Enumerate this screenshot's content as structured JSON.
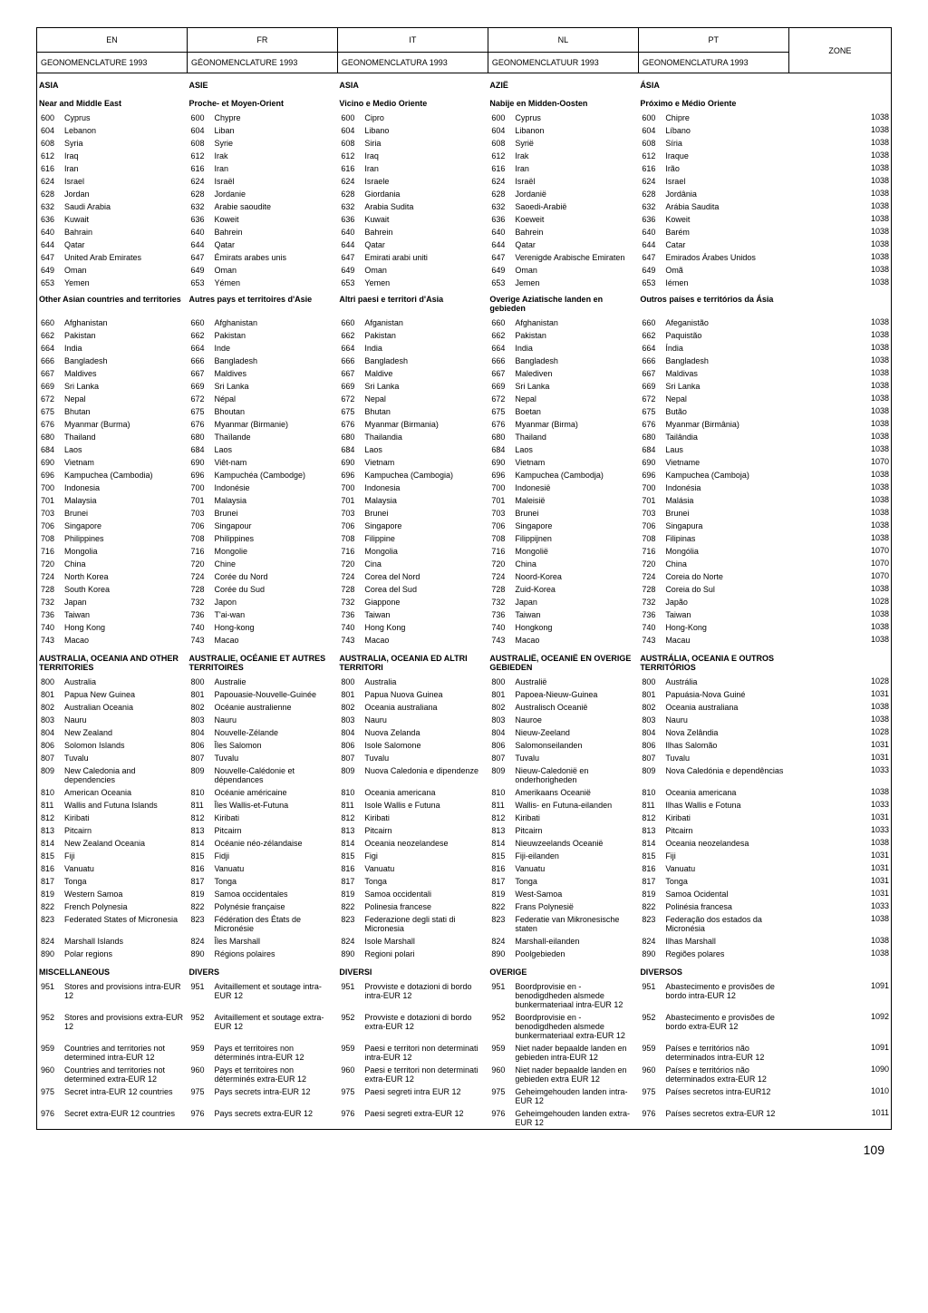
{
  "pageNumber": "109",
  "headers": {
    "en": "EN",
    "fr": "FR",
    "it": "IT",
    "nl": "NL",
    "pt": "PT",
    "zone": "ZONE"
  },
  "subheaders": {
    "en": "GEONOMENCLATURE 1993",
    "fr": "GÉONOMENCLATURE 1993",
    "it": "GEONOMENCLATURA 1993",
    "nl": "GEONOMENCLATUUR 1993",
    "pt": "GEONOMENCLATURA 1993"
  },
  "sections": [
    {
      "titles": {
        "en": "ASIA",
        "fr": "ASIE",
        "it": "ASIA",
        "nl": "AZIË",
        "pt": "ÁSIA"
      },
      "sub": {
        "en": "Near and Middle East",
        "fr": "Proche- et Moyen-Orient",
        "it": "Vicino e Medio Oriente",
        "nl": "Nabije en Midden-Oosten",
        "pt": "Próximo e Médio Oriente"
      },
      "rows": [
        {
          "c": "600",
          "en": "Cyprus",
          "fr": "Chypre",
          "it": "Cipro",
          "nl": "Cyprus",
          "pt": "Chipre",
          "z": "1038"
        },
        {
          "c": "604",
          "en": "Lebanon",
          "fr": "Liban",
          "it": "Libano",
          "nl": "Libanon",
          "pt": "Líbano",
          "z": "1038"
        },
        {
          "c": "608",
          "en": "Syria",
          "fr": "Syrie",
          "it": "Siria",
          "nl": "Syrië",
          "pt": "Síria",
          "z": "1038"
        },
        {
          "c": "612",
          "en": "Iraq",
          "fr": "Irak",
          "it": "Iraq",
          "nl": "Irak",
          "pt": "Iraque",
          "z": "1038"
        },
        {
          "c": "616",
          "en": "Iran",
          "fr": "Iran",
          "it": "Iran",
          "nl": "Iran",
          "pt": "Irão",
          "z": "1038"
        },
        {
          "c": "624",
          "en": "Israel",
          "fr": "Israël",
          "it": "Israele",
          "nl": "Israël",
          "pt": "Israel",
          "z": "1038"
        },
        {
          "c": "628",
          "en": "Jordan",
          "fr": "Jordanie",
          "it": "Giordania",
          "nl": "Jordanië",
          "pt": "Jordânia",
          "z": "1038"
        },
        {
          "c": "632",
          "en": "Saudi Arabia",
          "fr": "Arabie saoudite",
          "it": "Arabia Sudita",
          "nl": "Saoedi-Arabië",
          "pt": "Arábia Saudita",
          "z": "1038"
        },
        {
          "c": "636",
          "en": "Kuwait",
          "fr": "Koweit",
          "it": "Kuwait",
          "nl": "Koeweit",
          "pt": "Koweit",
          "z": "1038"
        },
        {
          "c": "640",
          "en": "Bahrain",
          "fr": "Bahrein",
          "it": "Bahrein",
          "nl": "Bahrein",
          "pt": "Barém",
          "z": "1038"
        },
        {
          "c": "644",
          "en": "Qatar",
          "fr": "Qatar",
          "it": "Qatar",
          "nl": "Qatar",
          "pt": "Catar",
          "z": "1038"
        },
        {
          "c": "647",
          "en": "United Arab Emirates",
          "fr": "Émirats arabes unis",
          "it": "Emirati arabi uniti",
          "nl": "Verenigde Arabische Emiraten",
          "pt": "Emirados Árabes Unidos",
          "z": "1038"
        },
        {
          "c": "649",
          "en": "Oman",
          "fr": "Oman",
          "it": "Oman",
          "nl": "Oman",
          "pt": "Omã",
          "z": "1038"
        },
        {
          "c": "653",
          "en": "Yemen",
          "fr": "Yémen",
          "it": "Yemen",
          "nl": "Jemen",
          "pt": "Iémen",
          "z": "1038"
        }
      ]
    },
    {
      "sub": {
        "en": "Other Asian countries and territories",
        "fr": "Autres pays et territoires d'Asie",
        "it": "Altri paesi e territori d'Asia",
        "nl": "Overige Aziatische landen en gebieden",
        "pt": "Outros países e territórios da Ásia"
      },
      "rows": [
        {
          "c": "660",
          "en": "Afghanistan",
          "fr": "Afghanistan",
          "it": "Afganistan",
          "nl": "Afghanistan",
          "pt": "Afeganistão",
          "z": "1038"
        },
        {
          "c": "662",
          "en": "Pakistan",
          "fr": "Pakistan",
          "it": "Pakistan",
          "nl": "Pakistan",
          "pt": "Paquistão",
          "z": "1038"
        },
        {
          "c": "664",
          "en": "India",
          "fr": "Inde",
          "it": "India",
          "nl": "India",
          "pt": "Índia",
          "z": "1038"
        },
        {
          "c": "666",
          "en": "Bangladesh",
          "fr": "Bangladesh",
          "it": "Bangladesh",
          "nl": "Bangladesh",
          "pt": "Bangladesh",
          "z": "1038"
        },
        {
          "c": "667",
          "en": "Maldives",
          "fr": "Maldives",
          "it": "Maldive",
          "nl": "Malediven",
          "pt": "Maldivas",
          "z": "1038"
        },
        {
          "c": "669",
          "en": "Sri Lanka",
          "fr": "Sri Lanka",
          "it": "Sri Lanka",
          "nl": "Sri Lanka",
          "pt": "Sri Lanka",
          "z": "1038"
        },
        {
          "c": "672",
          "en": "Nepal",
          "fr": "Népal",
          "it": "Nepal",
          "nl": "Nepal",
          "pt": "Nepal",
          "z": "1038"
        },
        {
          "c": "675",
          "en": "Bhutan",
          "fr": "Bhoutan",
          "it": "Bhutan",
          "nl": "Boetan",
          "pt": "Butão",
          "z": "1038"
        },
        {
          "c": "676",
          "en": "Myanmar (Burma)",
          "fr": "Myanmar (Birmanie)",
          "it": "Myanmar (Birmania)",
          "nl": "Myanmar (Birma)",
          "pt": "Myanmar (Birmânia)",
          "z": "1038"
        },
        {
          "c": "680",
          "en": "Thailand",
          "fr": "Thaïlande",
          "it": "Thailandia",
          "nl": "Thailand",
          "pt": "Tailândia",
          "z": "1038"
        },
        {
          "c": "684",
          "en": "Laos",
          "fr": "Laos",
          "it": "Laos",
          "nl": "Laos",
          "pt": "Laus",
          "z": "1038"
        },
        {
          "c": "690",
          "en": "Vietnam",
          "fr": "Viêt-nam",
          "it": "Vietnam",
          "nl": "Vietnam",
          "pt": "Vietname",
          "z": "1070"
        },
        {
          "c": "696",
          "en": "Kampuchea (Cambodia)",
          "fr": "Kampuchéa (Cambodge)",
          "it": "Kampuchea (Cambogia)",
          "nl": "Kampuchea (Cambodja)",
          "pt": "Kampuchea (Camboja)",
          "z": "1038"
        },
        {
          "c": "700",
          "en": "Indonesia",
          "fr": "Indonésie",
          "it": "Indonesia",
          "nl": "Indonesië",
          "pt": "Indonésia",
          "z": "1038"
        },
        {
          "c": "701",
          "en": "Malaysia",
          "fr": "Malaysia",
          "it": "Malaysia",
          "nl": "Maleisië",
          "pt": "Malásia",
          "z": "1038"
        },
        {
          "c": "703",
          "en": "Brunei",
          "fr": "Brunei",
          "it": "Brunei",
          "nl": "Brunei",
          "pt": "Brunei",
          "z": "1038"
        },
        {
          "c": "706",
          "en": "Singapore",
          "fr": "Singapour",
          "it": "Singapore",
          "nl": "Singapore",
          "pt": "Singapura",
          "z": "1038"
        },
        {
          "c": "708",
          "en": "Philippines",
          "fr": "Philippines",
          "it": "Filippine",
          "nl": "Filippijnen",
          "pt": "Filipinas",
          "z": "1038"
        },
        {
          "c": "716",
          "en": "Mongolia",
          "fr": "Mongolie",
          "it": "Mongolia",
          "nl": "Mongolië",
          "pt": "Mongólia",
          "z": "1070"
        },
        {
          "c": "720",
          "en": "China",
          "fr": "Chine",
          "it": "Cina",
          "nl": "China",
          "pt": "China",
          "z": "1070"
        },
        {
          "c": "724",
          "en": "North Korea",
          "fr": "Corée du Nord",
          "it": "Corea del Nord",
          "nl": "Noord-Korea",
          "pt": "Coreia do Norte",
          "z": "1070"
        },
        {
          "c": "728",
          "en": "South Korea",
          "fr": "Corée du Sud",
          "it": "Corea del Sud",
          "nl": "Zuid-Korea",
          "pt": "Coreia do Sul",
          "z": "1038"
        },
        {
          "c": "732",
          "en": "Japan",
          "fr": "Japon",
          "it": "Giappone",
          "nl": "Japan",
          "pt": "Japão",
          "z": "1028"
        },
        {
          "c": "736",
          "en": "Taiwan",
          "fr": "T'ai-wan",
          "it": "Taiwan",
          "nl": "Taiwan",
          "pt": "Taiwan",
          "z": "1038"
        },
        {
          "c": "740",
          "en": "Hong Kong",
          "fr": "Hong-kong",
          "it": "Hong Kong",
          "nl": "Hongkong",
          "pt": "Hong-Kong",
          "z": "1038"
        },
        {
          "c": "743",
          "en": "Macao",
          "fr": "Macao",
          "it": "Macao",
          "nl": "Macao",
          "pt": "Macau",
          "z": "1038"
        }
      ]
    },
    {
      "titles": {
        "en": "AUSTRALIA, OCEANIA AND OTHER TERRITORIES",
        "fr": "AUSTRALIE, OCÉANIE ET AUTRES TERRITOIRES",
        "it": "AUSTRALIA, OCEANIA ED ALTRI TERRITORI",
        "nl": "AUSTRALIË, OCEANIË EN OVERIGE GEBIEDEN",
        "pt": "AUSTRÁLIA, OCEANIA E OUTROS TERRITÓRIOS"
      },
      "rows": [
        {
          "c": "800",
          "en": "Australia",
          "fr": "Australie",
          "it": "Australia",
          "nl": "Australië",
          "pt": "Austrália",
          "z": "1028"
        },
        {
          "c": "801",
          "en": "Papua New Guinea",
          "fr": "Papouasie-Nouvelle-Guinée",
          "it": "Papua Nuova Guinea",
          "nl": "Papoea-Nieuw-Guinea",
          "pt": "Papuásia-Nova Guiné",
          "z": "1031"
        },
        {
          "c": "802",
          "en": "Australian Oceania",
          "fr": "Océanie australienne",
          "it": "Oceania australiana",
          "nl": "Australisch Oceanië",
          "pt": "Oceania australiana",
          "z": "1038"
        },
        {
          "c": "803",
          "en": "Nauru",
          "fr": "Nauru",
          "it": "Nauru",
          "nl": "Nauroe",
          "pt": "Nauru",
          "z": "1038"
        },
        {
          "c": "804",
          "en": "New Zealand",
          "fr": "Nouvelle-Zélande",
          "it": "Nuova Zelanda",
          "nl": "Nieuw-Zeeland",
          "pt": "Nova Zelândia",
          "z": "1028"
        },
        {
          "c": "806",
          "en": "Solomon Islands",
          "fr": "Îles Salomon",
          "it": "Isole Salomone",
          "nl": "Salomonseilanden",
          "pt": "Ilhas Salomão",
          "z": "1031"
        },
        {
          "c": "807",
          "en": "Tuvalu",
          "fr": "Tuvalu",
          "it": "Tuvalu",
          "nl": "Tuvalu",
          "pt": "Tuvalu",
          "z": "1031"
        },
        {
          "c": "809",
          "en": "New Caledonia and dependencies",
          "fr": "Nouvelle-Calédonie et dépendances",
          "it": "Nuova Caledonia e dipendenze",
          "nl": "Nieuw-Caledonië en onderhorigheden",
          "pt": "Nova Caledónia e dependências",
          "z": "1033"
        },
        {
          "c": "810",
          "en": "American Oceania",
          "fr": "Océanie américaine",
          "it": "Oceania americana",
          "nl": "Amerikaans Oceanië",
          "pt": "Oceania americana",
          "z": "1038"
        },
        {
          "c": "811",
          "en": "Wallis and Futuna Islands",
          "fr": "Îles Wallis-et-Futuna",
          "it": "Isole Wallis e Futuna",
          "nl": "Wallis- en Futuna-eilanden",
          "pt": "Ilhas Wallis e Fotuna",
          "z": "1033"
        },
        {
          "c": "812",
          "en": "Kiribati",
          "fr": "Kiribati",
          "it": "Kiribati",
          "nl": "Kiribati",
          "pt": "Kiribati",
          "z": "1031"
        },
        {
          "c": "813",
          "en": "Pitcairn",
          "fr": "Pitcairn",
          "it": "Pitcairn",
          "nl": "Pitcairn",
          "pt": "Pitcairn",
          "z": "1033"
        },
        {
          "c": "814",
          "en": "New Zealand Oceania",
          "fr": "Océanie néo-zélandaise",
          "it": "Oceania neozelandese",
          "nl": "Nieuwzeelands Oceanië",
          "pt": "Oceania neozelandesa",
          "z": "1038"
        },
        {
          "c": "815",
          "en": "Fiji",
          "fr": "Fidji",
          "it": "Figi",
          "nl": "Fiji-eilanden",
          "pt": "Fiji",
          "z": "1031"
        },
        {
          "c": "816",
          "en": "Vanuatu",
          "fr": "Vanuatu",
          "it": "Vanuatu",
          "nl": "Vanuatu",
          "pt": "Vanuatu",
          "z": "1031"
        },
        {
          "c": "817",
          "en": "Tonga",
          "fr": "Tonga",
          "it": "Tonga",
          "nl": "Tonga",
          "pt": "Tonga",
          "z": "1031"
        },
        {
          "c": "819",
          "en": "Western Samoa",
          "fr": "Samoa occidentales",
          "it": "Samoa occidentali",
          "nl": "West-Samoa",
          "pt": "Samoa Ocidental",
          "z": "1031"
        },
        {
          "c": "822",
          "en": "French Polynesia",
          "fr": "Polynésie française",
          "it": "Polinesia francese",
          "nl": "Frans Polynesië",
          "pt": "Polinésia francesa",
          "z": "1033"
        },
        {
          "c": "823",
          "en": "Federated States of Micronesia",
          "fr": "Fédération des États de Micronésie",
          "it": "Federazione degli stati di Micronesia",
          "nl": "Federatie van Mikronesische staten",
          "pt": "Federação dos estados da Micronésia",
          "z": "1038"
        },
        {
          "c": "824",
          "en": "Marshall Islands",
          "fr": "Îles Marshall",
          "it": "Isole Marshall",
          "nl": "Marshall-eilanden",
          "pt": "Ilhas Marshall",
          "z": "1038"
        },
        {
          "c": "890",
          "en": "Polar regions",
          "fr": "Régions polaires",
          "it": "Regioni polari",
          "nl": "Poolgebieden",
          "pt": "Regiões polares",
          "z": "1038"
        }
      ]
    },
    {
      "titles": {
        "en": "MISCELLANEOUS",
        "fr": "DIVERS",
        "it": "DIVERSI",
        "nl": "OVERIGE",
        "pt": "DIVERSOS"
      },
      "rows": [
        {
          "c": "951",
          "en": "Stores and provisions intra-EUR 12",
          "fr": "Avitaillement et soutage intra-EUR 12",
          "it": "Provviste e dotazioni di bordo intra-EUR 12",
          "nl": "Boordprovisie en -benodigdheden alsmede bunkermateriaal intra-EUR 12",
          "pt": "Abastecimento e provisões de bordo intra-EUR 12",
          "z": "1091"
        },
        {
          "c": "952",
          "en": "Stores and provisions extra-EUR 12",
          "fr": "Avitaillement et soutage extra-EUR 12",
          "it": "Provviste e dotazioni di bordo extra-EUR 12",
          "nl": "Boordprovisie en -benodigdheden alsmede bunkermateriaal extra-EUR 12",
          "pt": "Abastecimento e provisões de bordo extra-EUR 12",
          "z": "1092"
        },
        {
          "c": "959",
          "en": "Countries and territories not determined intra-EUR 12",
          "fr": "Pays et territoires non déterminés intra-EUR 12",
          "it": "Paesi e territori non determinati intra-EUR 12",
          "nl": "Niet nader bepaalde landen en gebieden intra-EUR 12",
          "pt": "Países e territórios não determinados intra-EUR 12",
          "z": "1091"
        },
        {
          "c": "960",
          "en": "Countries and territories not determined extra-EUR 12",
          "fr": "Pays et territoires non déterminés extra-EUR 12",
          "it": "Paesi e territori non determinati extra-EUR 12",
          "nl": "Niet nader bepaalde landen en gebieden extra EUR 12",
          "pt": "Países e territórios não determinados extra-EUR 12",
          "z": "1090"
        },
        {
          "c": "975",
          "en": "Secret intra-EUR 12 countries",
          "fr": "Pays secrets intra-EUR 12",
          "it": "Paesi segreti intra EUR 12",
          "nl": "Geheimgehouden landen intra-EUR 12",
          "pt": "Países secretos intra-EUR12",
          "z": "1010"
        },
        {
          "c": "976",
          "en": "Secret extra-EUR 12 countries",
          "fr": "Pays secrets extra-EUR 12",
          "it": "Paesi segreti extra-EUR 12",
          "nl": "Geheimgehouden landen extra-EUR 12",
          "pt": "Países secretos extra-EUR 12",
          "z": "1011"
        }
      ]
    }
  ]
}
